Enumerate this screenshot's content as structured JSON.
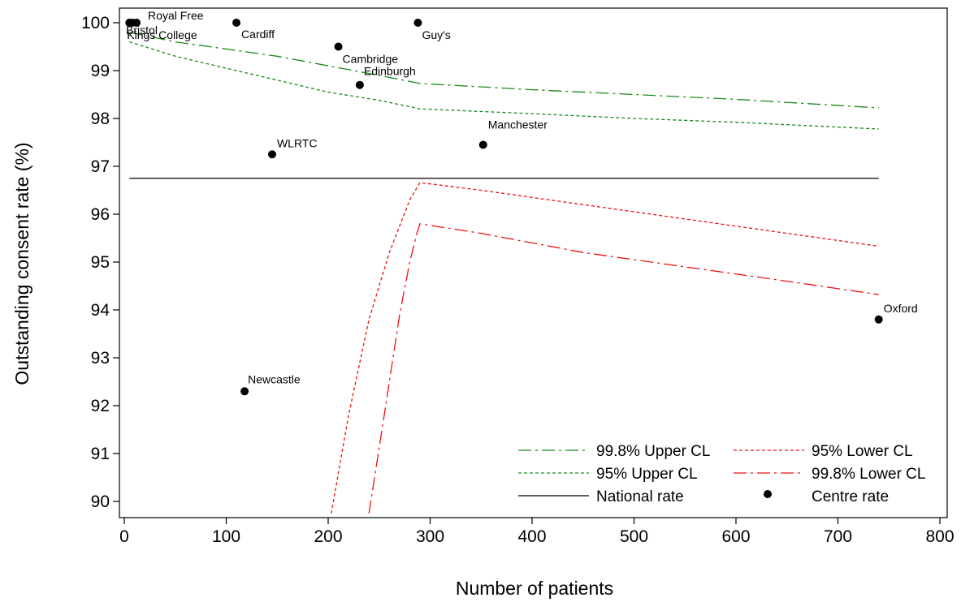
{
  "chart_data": {
    "type": "scatter",
    "title": "",
    "xlabel": "Number of patients",
    "ylabel": "Outstanding consent rate (%)",
    "xlim": [
      0,
      800
    ],
    "ylim": [
      89.7,
      100.3
    ],
    "x_ticks": [
      "0",
      "100",
      "200",
      "300",
      "400",
      "500",
      "600",
      "700",
      "800"
    ],
    "y_ticks": [
      "90",
      "91",
      "92",
      "93",
      "94",
      "95",
      "96",
      "97",
      "98",
      "99",
      "100"
    ],
    "grid": false,
    "legend_position": "bottom-right",
    "centres": [
      {
        "label": "Royal Free",
        "x": 12,
        "y": 100.0
      },
      {
        "label": "Bristol",
        "x": 8,
        "y": 100.0
      },
      {
        "label": "Kings College",
        "x": 5,
        "y": 100.0
      },
      {
        "label": "Cardiff",
        "x": 110,
        "y": 100.0
      },
      {
        "label": "Guy's",
        "x": 288,
        "y": 100.0
      },
      {
        "label": "Cambridge",
        "x": 210,
        "y": 99.5
      },
      {
        "label": "Edinburgh",
        "x": 231,
        "y": 98.7
      },
      {
        "label": "WLRTC",
        "x": 145,
        "y": 97.25
      },
      {
        "label": "Manchester",
        "x": 352,
        "y": 97.45
      },
      {
        "label": "Oxford",
        "x": 740,
        "y": 93.8
      },
      {
        "label": "Newcastle",
        "x": 118,
        "y": 92.3
      }
    ],
    "national_rate": {
      "name": "National rate",
      "value": 96.75,
      "x_range": [
        5,
        740
      ],
      "color": "#000000"
    },
    "series": [
      {
        "name": "99.8% Upper CL",
        "color": "#1a8a1a",
        "dash": "dashdot",
        "x": [
          5,
          50,
          100,
          150,
          200,
          250,
          290,
          400,
          500,
          600,
          740
        ],
        "y": [
          99.8,
          99.6,
          99.45,
          99.3,
          99.1,
          98.9,
          98.73,
          98.6,
          98.5,
          98.4,
          98.22
        ]
      },
      {
        "name": "95% Upper CL",
        "color": "#1a8a1a",
        "dash": "dotted",
        "x": [
          5,
          50,
          100,
          150,
          200,
          250,
          290,
          400,
          500,
          600,
          740
        ],
        "y": [
          99.6,
          99.3,
          99.05,
          98.8,
          98.55,
          98.38,
          98.2,
          98.1,
          98.0,
          97.92,
          97.78
        ]
      },
      {
        "name": "95% Lower CL",
        "color": "#ee1111",
        "dash": "dotted",
        "x": [
          203,
          220,
          240,
          260,
          280,
          290,
          350,
          450,
          550,
          650,
          740
        ],
        "y": [
          89.75,
          91.8,
          93.8,
          95.2,
          96.3,
          96.66,
          96.5,
          96.2,
          95.9,
          95.6,
          95.33
        ]
      },
      {
        "name": "99.8% Lower CL",
        "color": "#ee1111",
        "dash": "dashdot",
        "x": [
          240,
          255,
          270,
          280,
          287,
          290,
          350,
          450,
          550,
          650,
          740
        ],
        "y": [
          89.75,
          91.8,
          93.9,
          95.0,
          95.6,
          95.8,
          95.6,
          95.2,
          94.9,
          94.6,
          94.32
        ]
      }
    ],
    "centre_rate_legend": "Centre rate"
  }
}
